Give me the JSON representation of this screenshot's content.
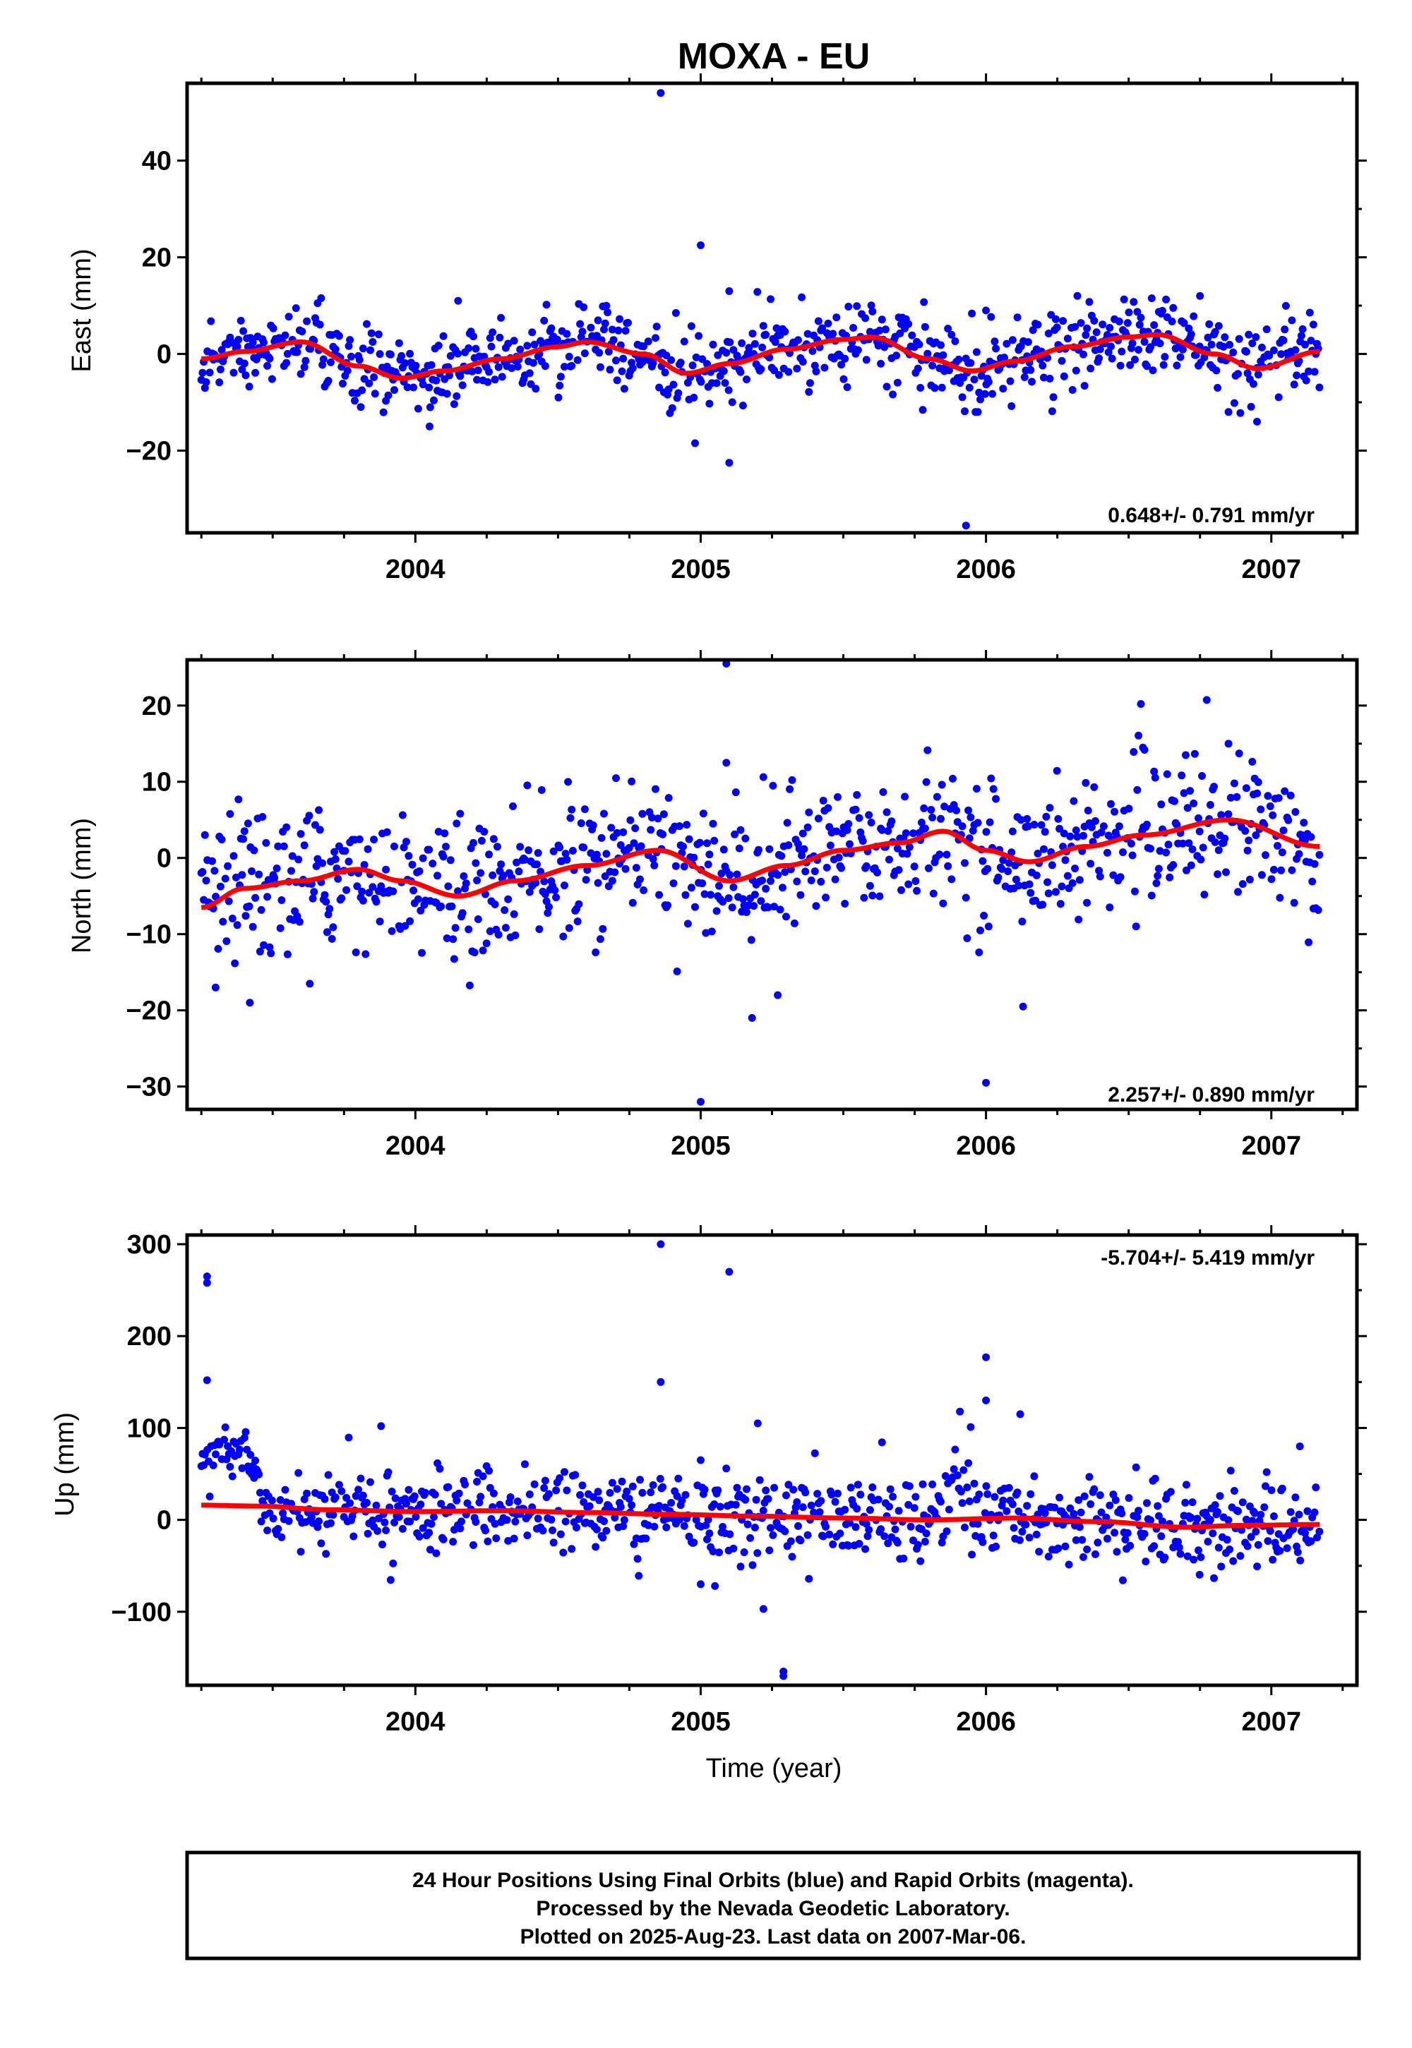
{
  "chart_data": {
    "type": "scatter",
    "title": "MOXA - EU",
    "xlabel": "Time (year)",
    "xlim": [
      2003.2,
      2007.3
    ],
    "x_ticks": [
      2004,
      2005,
      2006,
      2007
    ],
    "marker_color": "#0000ff",
    "fit_color": "#ff0000",
    "panels": [
      {
        "ylabel": "East (mm)",
        "ylim": [
          -37,
          56
        ],
        "y_ticks": [
          -20,
          0,
          20,
          40
        ],
        "y_tick_labels": [
          "−20",
          "0",
          "20",
          "40"
        ],
        "rate": "0.648+/- 0.791 mm/yr",
        "rate_position": "bottom-right",
        "fit": {
          "x": [
            2003.25,
            2003.4,
            2003.6,
            2003.8,
            2003.95,
            2004.1,
            2004.3,
            2004.5,
            2004.6,
            2004.8,
            2004.95,
            2005.1,
            2005.3,
            2005.5,
            2005.6,
            2005.8,
            2005.95,
            2006.1,
            2006.3,
            2006.5,
            2006.6,
            2006.8,
            2006.95,
            2007.17
          ],
          "y": [
            -1,
            0.5,
            2.5,
            -2.5,
            -5,
            -3.5,
            -1,
            1.5,
            2.5,
            0,
            -4,
            -2,
            1,
            3,
            3.5,
            -1,
            -3.5,
            -1.5,
            1.5,
            3.5,
            4,
            0,
            -3,
            0.5
          ]
        },
        "outliers": [
          {
            "x": 2004.86,
            "y": 54
          },
          {
            "x": 2005.0,
            "y": 22.5
          },
          {
            "x": 2005.1,
            "y": 13
          },
          {
            "x": 2005.1,
            "y": -22.5
          },
          {
            "x": 2005.93,
            "y": -35.5
          },
          {
            "x": 2006.0,
            "y": 9
          },
          {
            "x": 2004.05,
            "y": -15
          },
          {
            "x": 2004.15,
            "y": 11
          },
          {
            "x": 2006.75,
            "y": 12
          },
          {
            "x": 2006.85,
            "y": -12
          },
          {
            "x": 2006.95,
            "y": -14
          }
        ],
        "scatter": 4
      },
      {
        "ylabel": "North (mm)",
        "ylim": [
          -33,
          26
        ],
        "y_ticks": [
          -30,
          -20,
          -10,
          0,
          10,
          20
        ],
        "y_tick_labels": [
          "−30",
          "−20",
          "−10",
          "0",
          "10",
          "20"
        ],
        "rate": "2.257+/- 0.890 mm/yr",
        "rate_position": "bottom-right",
        "fit": {
          "x": [
            2003.25,
            2003.4,
            2003.6,
            2003.8,
            2003.95,
            2004.15,
            2004.35,
            2004.6,
            2004.85,
            2005.1,
            2005.3,
            2005.5,
            2005.7,
            2005.85,
            2006.0,
            2006.15,
            2006.35,
            2006.55,
            2006.85,
            2007.17
          ],
          "y": [
            -6.5,
            -4,
            -3,
            -1.5,
            -3,
            -5,
            -3,
            -1,
            1,
            -3,
            -1,
            1,
            2,
            3.5,
            1,
            -0.5,
            1.5,
            3,
            5,
            1.5
          ]
        },
        "outliers": [
          {
            "x": 2005.09,
            "y": 25.5
          },
          {
            "x": 2005.0,
            "y": -32
          },
          {
            "x": 2005.09,
            "y": 12.5
          },
          {
            "x": 2005.18,
            "y": -21
          },
          {
            "x": 2005.27,
            "y": -18
          },
          {
            "x": 2006.0,
            "y": -29.5
          },
          {
            "x": 2006.13,
            "y": -19.5
          },
          {
            "x": 2003.3,
            "y": -17
          },
          {
            "x": 2003.42,
            "y": -19
          },
          {
            "x": 2003.63,
            "y": -16.5
          },
          {
            "x": 2006.85,
            "y": 15
          },
          {
            "x": 2006.55,
            "y": 14.5
          },
          {
            "x": 2006.7,
            "y": 13.5
          }
        ],
        "scatter": 4.5
      },
      {
        "ylabel": "Up (mm)",
        "ylim": [
          -180,
          310
        ],
        "y_ticks": [
          -100,
          0,
          100,
          200,
          300
        ],
        "y_tick_labels": [
          "−100",
          "0",
          "100",
          "200",
          "300"
        ],
        "rate": "-5.704+/- 5.419 mm/yr",
        "rate_position": "top-right",
        "fit": {
          "x": [
            2003.25,
            2003.45,
            2003.7,
            2004.0,
            2004.3,
            2004.6,
            2004.9,
            2005.2,
            2005.5,
            2005.8,
            2006.1,
            2006.4,
            2006.7,
            2006.9,
            2007.17
          ],
          "y": [
            16,
            15,
            11,
            9,
            10,
            8,
            6,
            4,
            2,
            0,
            2,
            -2,
            -8,
            -6,
            -5
          ]
        },
        "outliers": [
          {
            "x": 2003.27,
            "y": 265
          },
          {
            "x": 2003.27,
            "y": 258
          },
          {
            "x": 2003.27,
            "y": 152
          },
          {
            "x": 2004.86,
            "y": 300
          },
          {
            "x": 2004.86,
            "y": 150
          },
          {
            "x": 2005.1,
            "y": 270
          },
          {
            "x": 2005.2,
            "y": 105
          },
          {
            "x": 2005.22,
            "y": -97
          },
          {
            "x": 2005.29,
            "y": -165
          },
          {
            "x": 2005.29,
            "y": -170
          },
          {
            "x": 2006.0,
            "y": 177
          },
          {
            "x": 2006.0,
            "y": 130
          },
          {
            "x": 2006.12,
            "y": 115
          },
          {
            "x": 2003.88,
            "y": 102
          },
          {
            "x": 2005.0,
            "y": 65
          },
          {
            "x": 2005.0,
            "y": -70
          },
          {
            "x": 2005.05,
            "y": -72
          },
          {
            "x": 2007.1,
            "y": 80
          }
        ],
        "scatter": 22
      }
    ]
  },
  "footer": {
    "line1": "24 Hour Positions Using Final Orbits (blue) and Rapid Orbits (magenta).",
    "line2": "Processed by the Nevada Geodetic Laboratory.",
    "line3": "Plotted on 2025-Aug-23. Last data on 2007-Mar-06."
  }
}
